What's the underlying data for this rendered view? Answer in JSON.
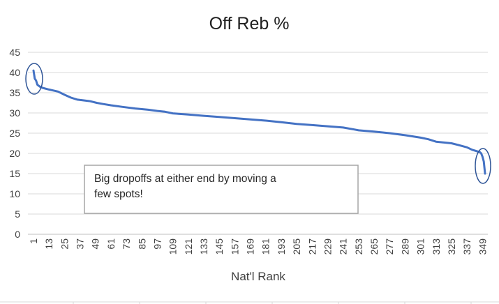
{
  "chart_data": {
    "type": "line",
    "title": "Off Reb %",
    "xlabel": "Nat'l Rank",
    "ylabel": "",
    "ylim": [
      0,
      45
    ],
    "yticks": [
      0,
      5,
      10,
      15,
      20,
      25,
      30,
      35,
      40,
      45
    ],
    "xlim": [
      1,
      351
    ],
    "xticks": [
      1,
      13,
      25,
      37,
      49,
      61,
      73,
      85,
      97,
      109,
      121,
      133,
      145,
      157,
      169,
      181,
      193,
      205,
      217,
      229,
      241,
      253,
      265,
      277,
      289,
      301,
      313,
      325,
      337,
      349
    ],
    "grid": "horizontal",
    "legend": "none",
    "color": "#4472C4",
    "series": [
      {
        "points": [
          [
            1,
            40.5
          ],
          [
            2,
            38.5
          ],
          [
            3,
            38.0
          ],
          [
            4,
            37.0
          ],
          [
            6,
            36.5
          ],
          [
            8,
            36.2
          ],
          [
            13,
            35.8
          ],
          [
            20,
            35.3
          ],
          [
            25,
            34.5
          ],
          [
            30,
            33.8
          ],
          [
            35,
            33.3
          ],
          [
            40,
            33.1
          ],
          [
            45,
            32.9
          ],
          [
            50,
            32.5
          ],
          [
            55,
            32.2
          ],
          [
            61,
            31.9
          ],
          [
            70,
            31.5
          ],
          [
            80,
            31.1
          ],
          [
            90,
            30.8
          ],
          [
            97,
            30.5
          ],
          [
            103,
            30.3
          ],
          [
            109,
            29.9
          ],
          [
            121,
            29.6
          ],
          [
            133,
            29.3
          ],
          [
            145,
            29.0
          ],
          [
            157,
            28.7
          ],
          [
            169,
            28.4
          ],
          [
            181,
            28.1
          ],
          [
            193,
            27.7
          ],
          [
            205,
            27.3
          ],
          [
            217,
            27.0
          ],
          [
            229,
            26.7
          ],
          [
            241,
            26.4
          ],
          [
            250,
            25.9
          ],
          [
            253,
            25.7
          ],
          [
            265,
            25.4
          ],
          [
            277,
            25.0
          ],
          [
            289,
            24.5
          ],
          [
            301,
            23.9
          ],
          [
            307,
            23.5
          ],
          [
            313,
            22.9
          ],
          [
            325,
            22.5
          ],
          [
            330,
            22.1
          ],
          [
            337,
            21.5
          ],
          [
            341,
            20.9
          ],
          [
            345,
            20.5
          ],
          [
            347,
            20.3
          ],
          [
            348,
            20.0
          ],
          [
            349,
            19.2
          ],
          [
            350,
            18.0
          ],
          [
            351,
            15.0
          ]
        ]
      }
    ],
    "annotations": [
      {
        "text": "Big dropoffs at either end by moving a few spots!"
      }
    ]
  }
}
